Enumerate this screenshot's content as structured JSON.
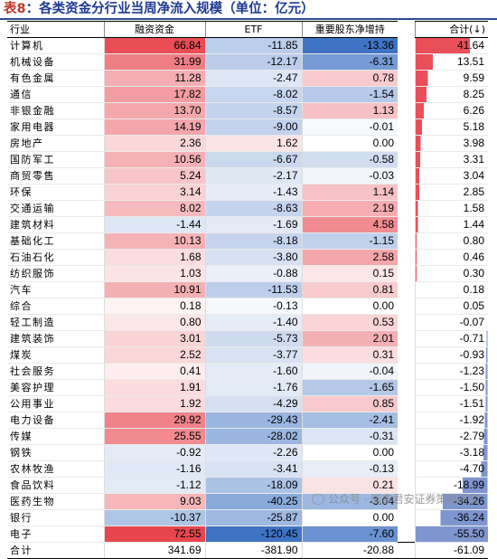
{
  "title": {
    "prefix": "表",
    "number": "8",
    "text": "：各类资金分行业当周净流入规模（单位：亿元）"
  },
  "columns": {
    "industry": "行业",
    "margin": "融资资金",
    "etf": "ETF",
    "major_holders": "重要股东净增持",
    "total": "合计(↓)"
  },
  "colors": {
    "positive": "#e8464f",
    "negative": "#3f73c4",
    "bar": "#7f95cf",
    "title": "#1f3a93",
    "title_accent": "#c0392b"
  },
  "rows": [
    {
      "industry": "计算机",
      "margin": 66.84,
      "etf": -11.85,
      "major_holders": -13.36,
      "total": 41.64
    },
    {
      "industry": "机械设备",
      "margin": 31.99,
      "etf": -12.17,
      "major_holders": -6.31,
      "total": 13.51
    },
    {
      "industry": "有色金属",
      "margin": 11.28,
      "etf": -2.47,
      "major_holders": 0.78,
      "total": 9.59
    },
    {
      "industry": "通信",
      "margin": 17.82,
      "etf": -8.02,
      "major_holders": -1.54,
      "total": 8.25
    },
    {
      "industry": "非银金融",
      "margin": 13.7,
      "etf": -8.57,
      "major_holders": 1.13,
      "total": 6.26
    },
    {
      "industry": "家用电器",
      "margin": 14.19,
      "etf": -9.0,
      "major_holders": -0.01,
      "total": 5.18
    },
    {
      "industry": "房地产",
      "margin": 2.36,
      "etf": 1.62,
      "major_holders": 0.0,
      "total": 3.98
    },
    {
      "industry": "国防军工",
      "margin": 10.56,
      "etf": -6.67,
      "major_holders": -0.58,
      "total": 3.31
    },
    {
      "industry": "商贸零售",
      "margin": 5.24,
      "etf": -2.17,
      "major_holders": -0.03,
      "total": 3.04
    },
    {
      "industry": "环保",
      "margin": 3.14,
      "etf": -1.43,
      "major_holders": 1.14,
      "total": 2.85
    },
    {
      "industry": "交通运输",
      "margin": 8.02,
      "etf": -8.63,
      "major_holders": 2.19,
      "total": 1.58
    },
    {
      "industry": "建筑材料",
      "margin": -1.44,
      "etf": -1.69,
      "major_holders": 4.58,
      "total": 1.44
    },
    {
      "industry": "基础化工",
      "margin": 10.13,
      "etf": -8.18,
      "major_holders": -1.15,
      "total": 0.8
    },
    {
      "industry": "石油石化",
      "margin": 1.68,
      "etf": -3.8,
      "major_holders": 2.58,
      "total": 0.46
    },
    {
      "industry": "纺织服饰",
      "margin": 1.03,
      "etf": -0.88,
      "major_holders": 0.15,
      "total": 0.3
    },
    {
      "industry": "汽车",
      "margin": 10.91,
      "etf": -11.53,
      "major_holders": 0.81,
      "total": 0.18
    },
    {
      "industry": "综合",
      "margin": 0.18,
      "etf": -0.13,
      "major_holders": 0.0,
      "total": 0.05
    },
    {
      "industry": "轻工制造",
      "margin": 0.8,
      "etf": -1.4,
      "major_holders": 0.53,
      "total": -0.07
    },
    {
      "industry": "建筑装饰",
      "margin": 3.01,
      "etf": -5.73,
      "major_holders": 2.01,
      "total": -0.71
    },
    {
      "industry": "煤炭",
      "margin": 2.52,
      "etf": -3.77,
      "major_holders": 0.31,
      "total": -0.93
    },
    {
      "industry": "社会服务",
      "margin": 0.41,
      "etf": -1.6,
      "major_holders": -0.04,
      "total": -1.23
    },
    {
      "industry": "美容护理",
      "margin": 1.91,
      "etf": -1.76,
      "major_holders": -1.65,
      "total": -1.5
    },
    {
      "industry": "公用事业",
      "margin": 1.92,
      "etf": -4.29,
      "major_holders": 0.85,
      "total": -1.51
    },
    {
      "industry": "电力设备",
      "margin": 29.92,
      "etf": -29.43,
      "major_holders": -2.41,
      "total": -1.92
    },
    {
      "industry": "传媒",
      "margin": 25.55,
      "etf": -28.02,
      "major_holders": -0.31,
      "total": -2.79
    },
    {
      "industry": "钢铁",
      "margin": -0.92,
      "etf": -2.26,
      "major_holders": 0.0,
      "total": -3.18
    },
    {
      "industry": "农林牧渔",
      "margin": -1.16,
      "etf": -3.41,
      "major_holders": -0.13,
      "total": -4.7
    },
    {
      "industry": "食品饮料",
      "margin": -1.12,
      "etf": -18.09,
      "major_holders": 0.21,
      "total": -18.99
    },
    {
      "industry": "医药生物",
      "margin": 9.03,
      "etf": -40.25,
      "major_holders": -3.04,
      "total": -34.26
    },
    {
      "industry": "银行",
      "margin": -10.37,
      "etf": -25.87,
      "major_holders": 0.0,
      "total": -36.24
    },
    {
      "industry": "电子",
      "margin": 72.55,
      "etf": -120.45,
      "major_holders": -7.6,
      "total": -55.5
    }
  ],
  "summary": {
    "industry": "合计",
    "margin": "341.69",
    "etf": "-381.90",
    "major_holders": "-20.88",
    "total": "-61.09"
  },
  "watermark": "公众号 · 国泰君安证券策略研究"
}
